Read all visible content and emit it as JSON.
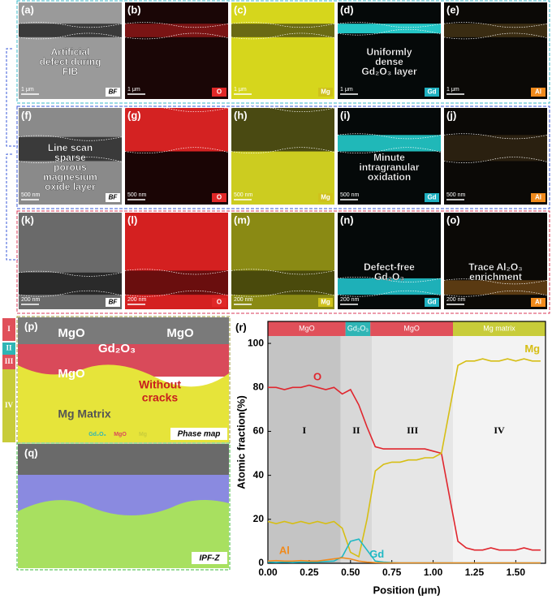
{
  "panels": [
    {
      "label": "(a)",
      "tag": "BF",
      "scale": "1 μm",
      "notes": [
        "Artificial",
        "defect during",
        "FIB"
      ]
    },
    {
      "label": "(b)",
      "tag": "O",
      "scale": "1 μm",
      "notes": []
    },
    {
      "label": "(c)",
      "tag": "Mg",
      "scale": "1 μm",
      "notes": []
    },
    {
      "label": "(d)",
      "tag": "Gd",
      "scale": "1 μm",
      "notes": [
        "Uniformly",
        "dense",
        "Gd₂O₃ layer"
      ]
    },
    {
      "label": "(e)",
      "tag": "Al",
      "scale": "1 μm",
      "notes": []
    },
    {
      "label": "(f)",
      "tag": "BF",
      "scale": "500 nm",
      "notes": [
        "Line scan",
        "sparse",
        "porous",
        "magnesium",
        "oxide layer"
      ]
    },
    {
      "label": "(g)",
      "tag": "O",
      "scale": "500 nm",
      "notes": []
    },
    {
      "label": "(h)",
      "tag": "Mg",
      "scale": "500 nm",
      "notes": []
    },
    {
      "label": "(i)",
      "tag": "Gd",
      "scale": "500 nm",
      "notes": [
        "Minute",
        "intragranular",
        "oxidation"
      ]
    },
    {
      "label": "(j)",
      "tag": "Al",
      "scale": "500 nm",
      "notes": []
    },
    {
      "label": "(k)",
      "tag": "BF",
      "scale": "200 nm",
      "notes": []
    },
    {
      "label": "(l)",
      "tag": "O",
      "scale": "200 nm",
      "notes": []
    },
    {
      "label": "(m)",
      "tag": "Mg",
      "scale": "200 nm",
      "notes": []
    },
    {
      "label": "(n)",
      "tag": "Gd",
      "scale": "200 nm",
      "notes": [
        "Defect-free",
        "Gd₂O₃"
      ]
    },
    {
      "label": "(o)",
      "tag": "Al",
      "scale": "200 nm",
      "notes": [
        "Trace Al₂O₃",
        "enrichment"
      ]
    }
  ],
  "phase_map": {
    "label": "(p)",
    "texts": [
      "MgO",
      "MgO",
      "Gd₂O₃",
      "MgO",
      "Without",
      "cracks",
      "Mg Matrix"
    ],
    "caption": "Phase map",
    "legend": [
      "Gd₂O₃",
      "MgO",
      "Mg"
    ],
    "zones": [
      "I",
      "II",
      "III",
      "IV"
    ]
  },
  "ipf_map": {
    "label": "(q)",
    "caption": "IPF-Z"
  },
  "chart_data": {
    "type": "line",
    "label": "(r)",
    "x_label": "Position (μm)",
    "y_label": "Atomic fraction(%)",
    "xlim": [
      0,
      1.68
    ],
    "ylim": [
      0,
      110
    ],
    "xticks": [
      {
        "value": 0,
        "label": "0.00"
      },
      {
        "value": 0.25,
        "label": "0.25"
      },
      {
        "value": 0.5,
        "label": "0.50"
      },
      {
        "value": 0.75,
        "label": "0.75"
      },
      {
        "value": 1,
        "label": "1.00"
      },
      {
        "value": 1.25,
        "label": "1.25"
      },
      {
        "value": 1.5,
        "label": "1.50"
      }
    ],
    "yticks": [
      0,
      20,
      40,
      60,
      80,
      100
    ],
    "regions": [
      {
        "label": "I",
        "start": 0,
        "end": 0.44,
        "color": "#c4c4c4"
      },
      {
        "label": "II",
        "start": 0.44,
        "end": 0.63,
        "color": "#d8d8d8"
      },
      {
        "label": "III",
        "start": 0.63,
        "end": 1.12,
        "color": "#e6e6e6"
      },
      {
        "label": "IV",
        "start": 1.12,
        "end": 1.68,
        "color": "#f3f3f3"
      }
    ],
    "bands": [
      {
        "label": "MgO",
        "start": 0,
        "end": 0.47,
        "color": "#e0505a"
      },
      {
        "label": "Gd₂O₃",
        "start": 0.47,
        "end": 0.62,
        "color": "#2fb5b5"
      },
      {
        "label": "MgO",
        "start": 0.62,
        "end": 1.12,
        "color": "#e0505a"
      },
      {
        "label": "Mg matrix",
        "start": 1.12,
        "end": 1.68,
        "color": "#c8cc3a"
      }
    ],
    "x": [
      0,
      0.05,
      0.1,
      0.15,
      0.2,
      0.25,
      0.3,
      0.35,
      0.4,
      0.45,
      0.5,
      0.55,
      0.6,
      0.65,
      0.7,
      0.75,
      0.8,
      0.85,
      0.9,
      0.95,
      1,
      1.05,
      1.1,
      1.15,
      1.2,
      1.25,
      1.3,
      1.35,
      1.4,
      1.45,
      1.5,
      1.55,
      1.6,
      1.65
    ],
    "series": [
      {
        "name": "O",
        "color": "#e0262e",
        "values": [
          80,
          80,
          79,
          80,
          80,
          81,
          80,
          79,
          80,
          77,
          79,
          72,
          62,
          53,
          52,
          52,
          52,
          52,
          52,
          52,
          51,
          50,
          30,
          10,
          7,
          6,
          6,
          7,
          6,
          6,
          6,
          7,
          6,
          6
        ]
      },
      {
        "name": "Mg",
        "color": "#d6be14",
        "values": [
          19,
          18,
          19,
          18,
          19,
          18,
          19,
          18,
          19,
          16,
          5,
          3,
          20,
          42,
          45,
          46,
          46,
          47,
          47,
          48,
          48,
          50,
          70,
          90,
          92,
          92,
          93,
          92,
          92,
          93,
          92,
          93,
          92,
          92
        ]
      },
      {
        "name": "Gd",
        "color": "#1fb8c4",
        "values": [
          0.5,
          0.4,
          0.5,
          0.4,
          0.5,
          0.5,
          0.6,
          0.8,
          1,
          3,
          10,
          11,
          6,
          1,
          0.5,
          0.3,
          0.2,
          0.2,
          0.2,
          0.2,
          0.2,
          0.2,
          0.2,
          0.2,
          0.2,
          0.2,
          0.2,
          0.2,
          0.2,
          0.2,
          0.2,
          0.2,
          0.2,
          0.2
        ]
      },
      {
        "name": "Al",
        "color": "#f08a1c",
        "values": [
          1,
          1.2,
          1,
          1,
          1.2,
          1,
          1,
          1.5,
          2,
          2.5,
          2,
          1,
          0.5,
          0.3,
          0.2,
          0.2,
          0.2,
          0.2,
          0.2,
          0.2,
          0.2,
          0.2,
          0.2,
          0.2,
          0.2,
          0.2,
          0.2,
          0.2,
          0.2,
          0.2,
          0.2,
          0.2,
          0.2,
          0.2
        ]
      }
    ]
  }
}
